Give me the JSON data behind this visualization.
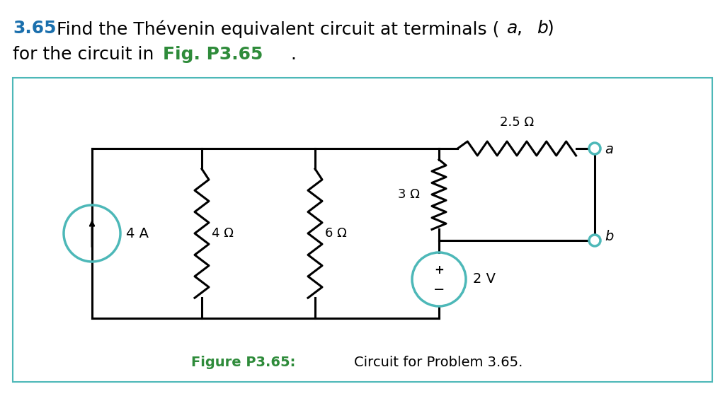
{
  "bg_color": "#ffffff",
  "box_color": "#4db8b8",
  "text_color": "#000000",
  "blue_color": "#4db8b8",
  "green_color": "#2e8b3a",
  "title_color": "#1a6fad",
  "line_color": "#000000",
  "title_number": "3.65",
  "title_main": "Find the Thévenin equivalent circuit at terminals (",
  "title_a": "a",
  "title_comma": ", ",
  "title_b": "b",
  "title_close": ")",
  "sub_plain": "for the circuit in ",
  "sub_fig": "Fig. P3.65",
  "sub_dot": ".",
  "caption_bold": "Figure P3.65:",
  "caption_plain": " Circuit for Problem 3.65."
}
